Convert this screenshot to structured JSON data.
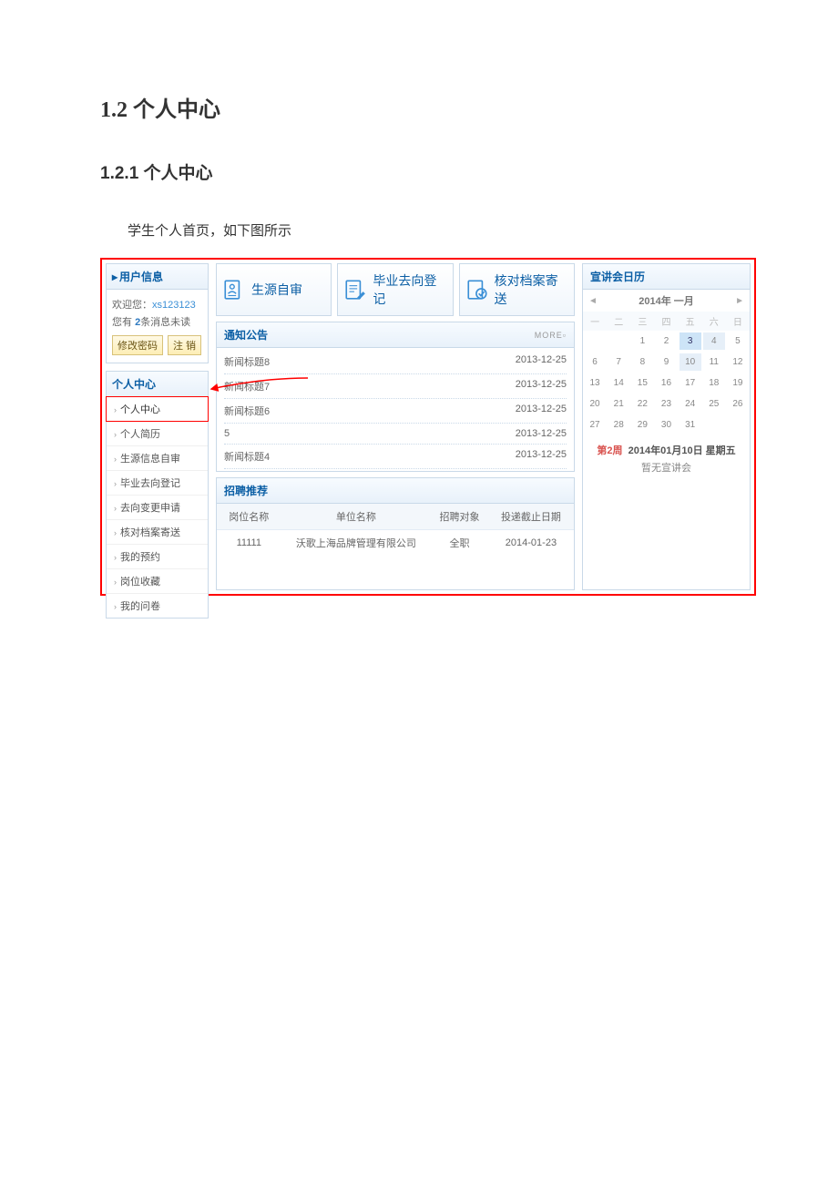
{
  "doc": {
    "h1": "1.2 个人中心",
    "h2": "1.2.1 个人中心",
    "para": "学生个人首页，如下图所示"
  },
  "user_panel": {
    "title": "用户信息",
    "welcome_prefix": "欢迎您：",
    "username": "xs123123",
    "msg_prefix": "您有 ",
    "msg_count": "2",
    "msg_suffix": "条消息未读",
    "btn_pwd": "修改密码",
    "btn_logout": "注 销"
  },
  "nav_panel": {
    "title": "个人中心",
    "items": [
      "个人中心",
      "个人简历",
      "生源信息自审",
      "毕业去向登记",
      "去向变更申请",
      "核对档案寄送",
      "我的预约",
      "岗位收藏",
      "我的问卷"
    ],
    "active_index": 0
  },
  "big_buttons": [
    {
      "label": "生源自审",
      "icon": "doc-user"
    },
    {
      "label": "毕业去向登记",
      "icon": "doc-pen"
    },
    {
      "label": "核对档案寄送",
      "icon": "doc-check"
    }
  ],
  "notice": {
    "title": "通知公告",
    "more": "MORE",
    "rows": [
      {
        "title": "新闻标题8",
        "date": "2013-12-25"
      },
      {
        "title": "新闻标题7",
        "date": "2013-12-25"
      },
      {
        "title": "新闻标题6",
        "date": "2013-12-25"
      },
      {
        "title": "5",
        "date": "2013-12-25"
      },
      {
        "title": "新闻标题4",
        "date": "2013-12-25"
      }
    ]
  },
  "jobs": {
    "title": "招聘推荐",
    "columns": [
      "岗位名称",
      "单位名称",
      "招聘对象",
      "投递截止日期"
    ],
    "col_widths": [
      "18%",
      "42%",
      "16%",
      "24%"
    ],
    "rows": [
      [
        "11111",
        "沃歌上海品牌管理有限公司",
        "全职",
        "2014-01-23"
      ]
    ]
  },
  "calendar": {
    "title": "宣讲会日历",
    "month_label": "2014年 一月",
    "weekdays": [
      "一",
      "二",
      "三",
      "四",
      "五",
      "六",
      "日"
    ],
    "lead_blanks": 2,
    "days": 31,
    "today": 3,
    "highlight": [
      4,
      10
    ],
    "foot_week_label": "第2周",
    "foot_date": "2014年01月10日 星期五",
    "foot_empty": "暂无宣讲会"
  },
  "colors": {
    "accent": "#0c5fa5",
    "border": "#c9d9e8",
    "red": "#ff0000"
  }
}
